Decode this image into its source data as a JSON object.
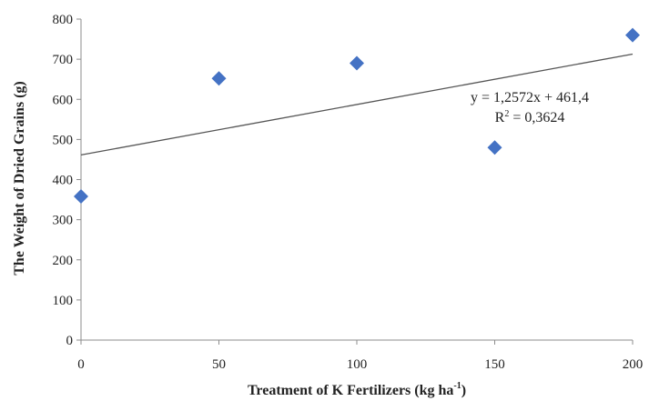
{
  "chart_data": {
    "type": "scatter",
    "xlabel": "Treatment of K Fertilizers (kg ha",
    "xlabel_sup": "-1",
    "xlabel_tail": ")",
    "ylabel": "The Weight of Dried Grains (g)",
    "xlim": [
      0,
      200
    ],
    "ylim": [
      0,
      800
    ],
    "x_ticks": [
      "0",
      "50",
      "100",
      "150",
      "200"
    ],
    "y_ticks": [
      "0",
      "100",
      "200",
      "300",
      "400",
      "500",
      "600",
      "700",
      "800"
    ],
    "grid": false,
    "legend": "none",
    "series": [
      {
        "marker": "diamond",
        "color": "#4472C4",
        "points": [
          {
            "x": 0,
            "y": 358
          },
          {
            "x": 50,
            "y": 652
          },
          {
            "x": 100,
            "y": 690
          },
          {
            "x": 150,
            "y": 480
          },
          {
            "x": 200,
            "y": 760
          }
        ]
      }
    ],
    "trendline": {
      "type": "linear",
      "slope": 1.2572,
      "intercept": 461.4,
      "color": "#555555",
      "equation": "y = 1,2572x + 461,4",
      "r2_prefix": "R",
      "r2_sup": "2",
      "r2_value": " = 0,3624"
    }
  }
}
